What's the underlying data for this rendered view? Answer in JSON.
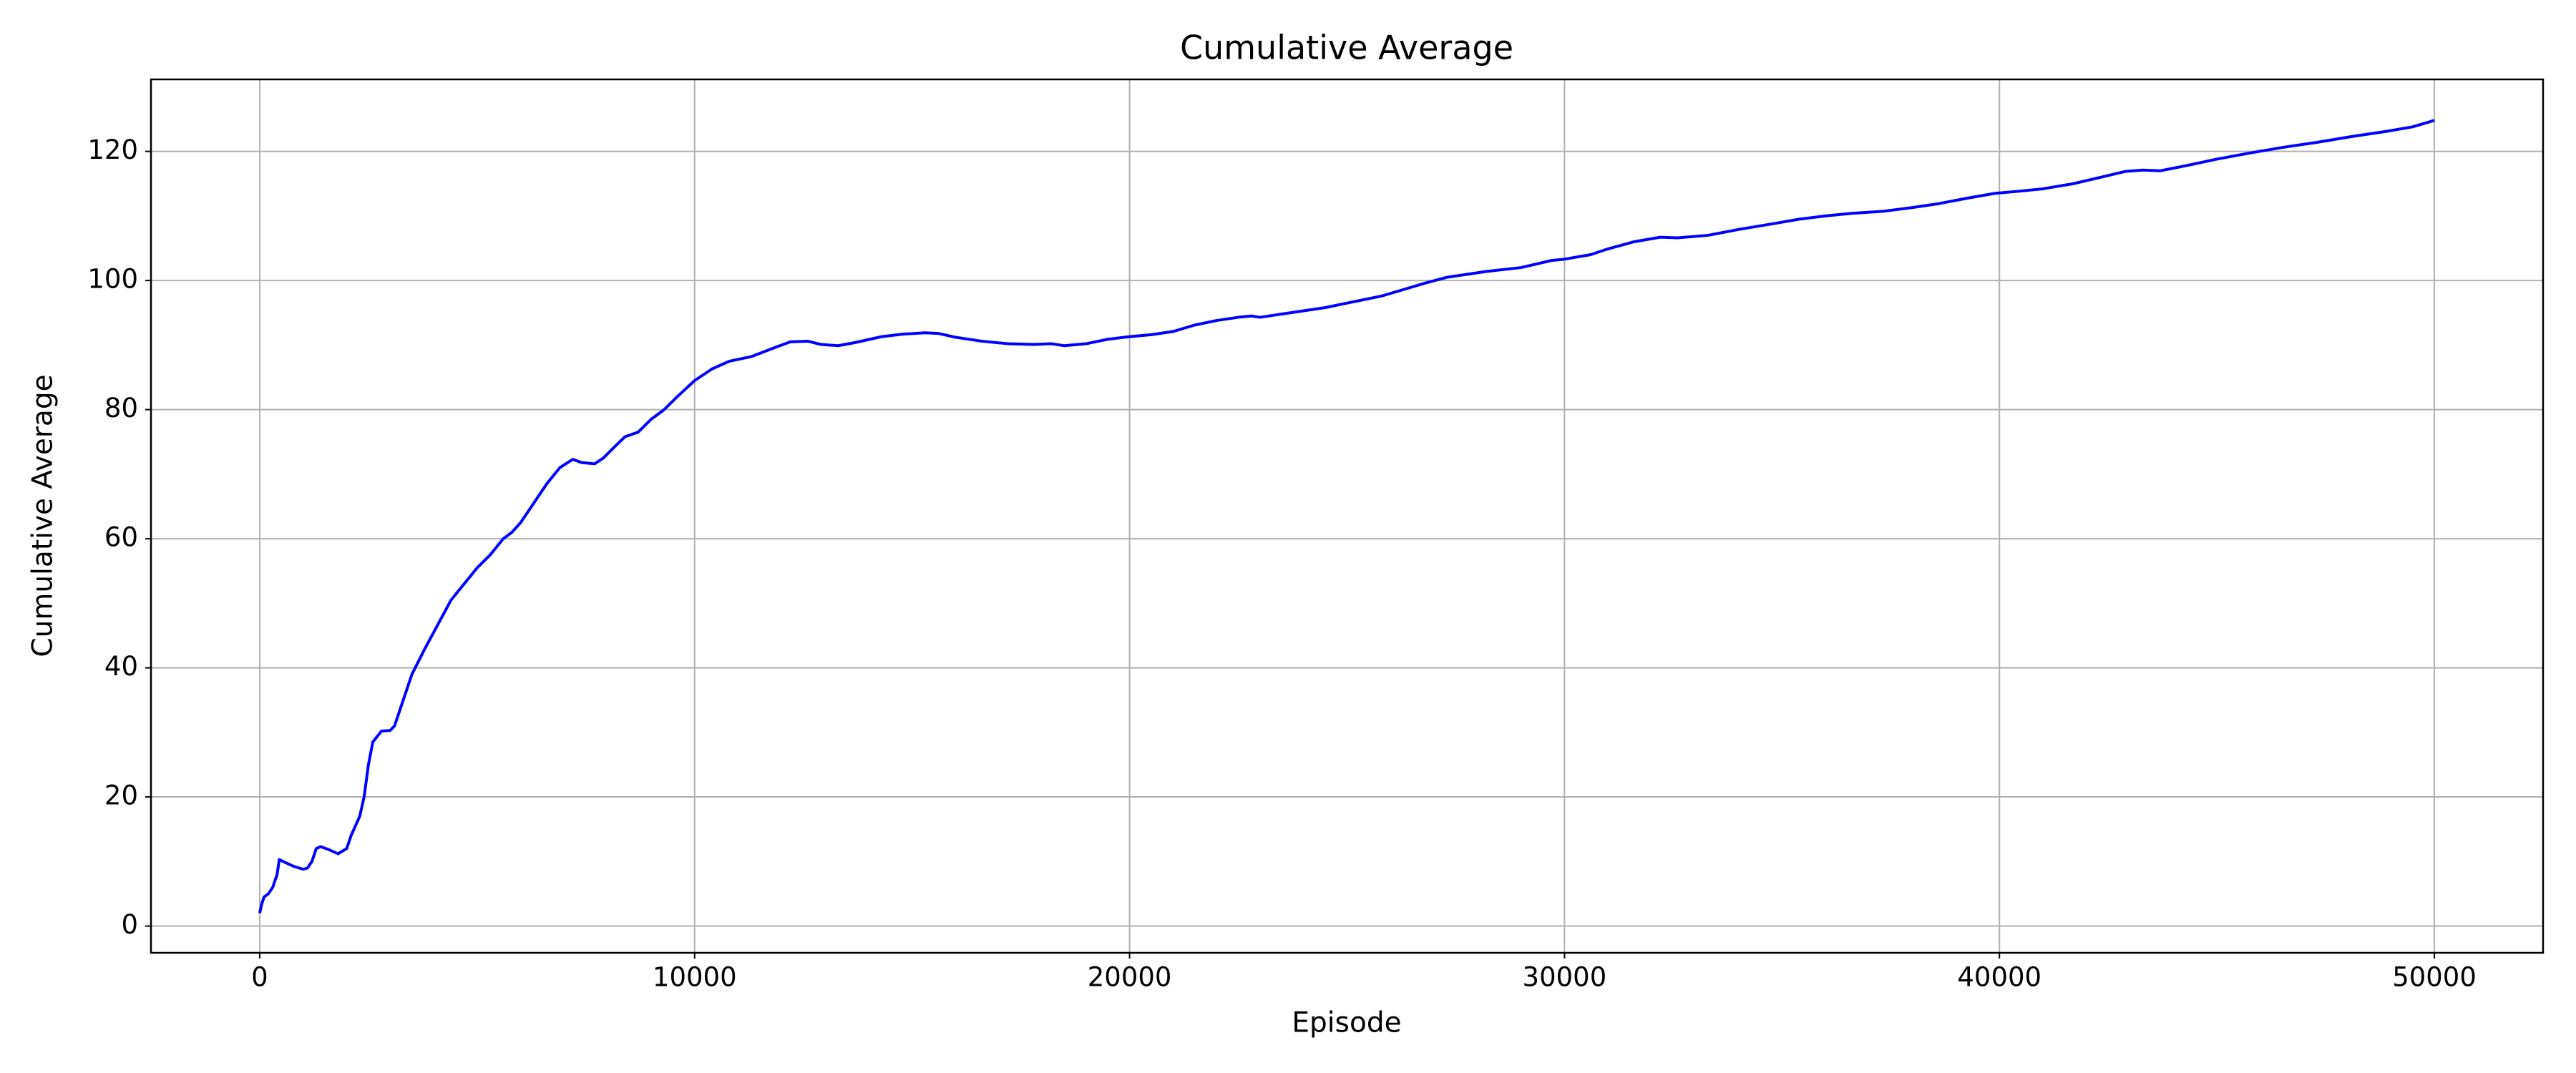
{
  "chart_data": {
    "type": "line",
    "title": "Cumulative Average",
    "x_label": "Episode",
    "y_label": "Cumulative Average",
    "x": [
      0,
      50,
      100,
      200,
      300,
      400,
      450,
      600,
      800,
      1000,
      1100,
      1200,
      1300,
      1400,
      1600,
      1800,
      2000,
      2100,
      2300,
      2400,
      2500,
      2600,
      2800,
      3000,
      3100,
      3300,
      3500,
      3800,
      4000,
      4200,
      4400,
      4700,
      5000,
      5300,
      5600,
      5800,
      6000,
      6300,
      6600,
      6900,
      7200,
      7400,
      7700,
      7900,
      8200,
      8400,
      8700,
      9000,
      9300,
      9600,
      10000,
      10400,
      10800,
      11300,
      11800,
      12200,
      12600,
      12900,
      13300,
      13700,
      14300,
      14800,
      15300,
      15600,
      16000,
      16600,
      17200,
      17800,
      18200,
      18500,
      19000,
      19500,
      20000,
      20500,
      21000,
      21500,
      22000,
      22500,
      22800,
      23000,
      23500,
      24000,
      24500,
      25000,
      25800,
      26300,
      26800,
      27300,
      27800,
      28200,
      29000,
      29700,
      30000,
      30600,
      31000,
      31600,
      32200,
      32600,
      33300,
      34000,
      34800,
      35400,
      36000,
      36600,
      37300,
      38000,
      38600,
      39300,
      39900,
      40400,
      41000,
      41700,
      42400,
      42900,
      43300,
      43700,
      44300,
      45000,
      45800,
      46500,
      47300,
      48100,
      48900,
      49500,
      50000
    ],
    "series": [
      {
        "name": "Cumulative Average",
        "color": "#0000ff",
        "values": [
          2,
          3.5,
          4.5,
          5,
          6,
          8,
          10.3,
          9.8,
          9.2,
          8.8,
          9,
          10,
          12,
          12.3,
          11.8,
          11.2,
          12,
          14,
          17,
          20,
          25,
          28.5,
          30.2,
          30.3,
          31,
          35,
          39,
          43,
          45.5,
          48,
          50.5,
          53,
          55.5,
          57.5,
          60,
          61,
          62.5,
          65.5,
          68.5,
          71,
          72.3,
          71.8,
          71.6,
          72.5,
          74.5,
          75.8,
          76.5,
          78.5,
          80,
          82,
          84.5,
          86.3,
          87.5,
          88.2,
          89.5,
          90.5,
          90.6,
          90.1,
          89.9,
          90.4,
          91.3,
          91.7,
          91.9,
          91.8,
          91.2,
          90.6,
          90.2,
          90.1,
          90.2,
          89.9,
          90.2,
          90.9,
          91.3,
          91.6,
          92.1,
          93.1,
          93.8,
          94.3,
          94.5,
          94.3,
          94.8,
          95.3,
          95.8,
          96.5,
          97.6,
          98.6,
          99.6,
          100.5,
          101,
          101.4,
          102,
          103.1,
          103.3,
          104,
          104.9,
          106,
          106.7,
          106.6,
          107,
          107.9,
          108.8,
          109.5,
          110,
          110.4,
          110.7,
          111.3,
          111.9,
          112.8,
          113.5,
          113.8,
          114.2,
          115,
          116.1,
          116.9,
          117.1,
          117,
          117.8,
          118.8,
          119.8,
          120.6,
          121.4,
          122.3,
          123.1,
          123.8,
          124.8
        ]
      }
    ],
    "xlim": [
      -2500,
      52500
    ],
    "ylim": [
      -4.15,
      131.15
    ],
    "xticks": [
      0,
      10000,
      20000,
      30000,
      40000,
      50000
    ],
    "yticks": [
      0,
      20,
      40,
      60,
      80,
      100,
      120
    ],
    "grid": true
  }
}
